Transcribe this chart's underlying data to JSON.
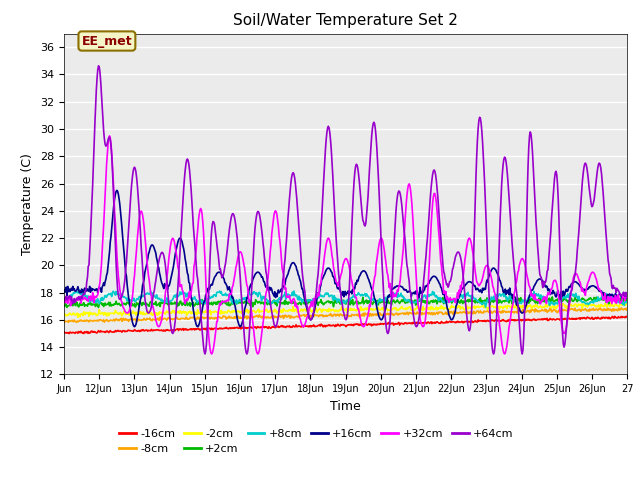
{
  "title": "Soil/Water Temperature Set 2",
  "xlabel": "Time",
  "ylabel": "Temperature (C)",
  "ylim": [
    12,
    37
  ],
  "yticks": [
    12,
    14,
    16,
    18,
    20,
    22,
    24,
    26,
    28,
    30,
    32,
    34,
    36
  ],
  "n_days": 16,
  "x_tick_labels": [
    "Jun",
    "12Jun",
    "13Jun",
    "14Jun",
    "15Jun",
    "16Jun",
    "17Jun",
    "18Jun",
    "19Jun",
    "20Jun",
    "21Jun",
    "22Jun",
    "23Jun",
    "24Jun",
    "25Jun",
    "26Jun",
    "27"
  ],
  "annotation_text": "EE_met",
  "annotation_color": "#8B0000",
  "annotation_bg": "#f5f5c8",
  "annotation_border": "#8B7000",
  "bg_color": "#ebebeb",
  "grid_color": "#ffffff",
  "series": {
    "-16cm": {
      "color": "#ff0000",
      "lw": 1.2
    },
    "-8cm": {
      "color": "#ffa500",
      "lw": 1.2
    },
    "-2cm": {
      "color": "#ffff00",
      "lw": 1.2
    },
    "+2cm": {
      "color": "#00bb00",
      "lw": 1.2
    },
    "+8cm": {
      "color": "#00cccc",
      "lw": 1.2
    },
    "+16cm": {
      "color": "#00008b",
      "lw": 1.2
    },
    "+32cm": {
      "color": "#ff00ff",
      "lw": 1.2
    },
    "+64cm": {
      "color": "#9900cc",
      "lw": 1.2
    }
  },
  "legend_order": [
    "-16cm",
    "-8cm",
    "-2cm",
    "+2cm",
    "+8cm",
    "+16cm",
    "+32cm",
    "+64cm"
  ],
  "legend_ncol_row1": 6,
  "legend_ncol_row2": 2
}
